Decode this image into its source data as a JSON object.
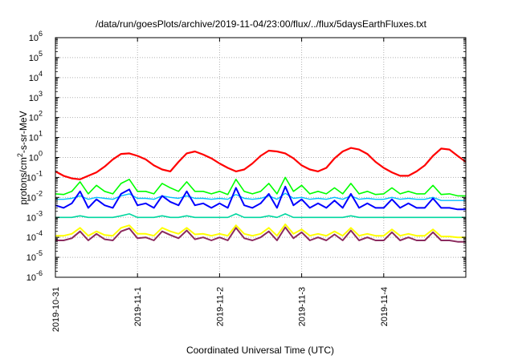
{
  "chart_data": {
    "type": "line",
    "title": "/data/run/goesPlots/archive/2019-11-04/23:00/flux/../flux/5daysEarthFluxes.txt",
    "xlabel": "Coordinated Universal Time (UTC)",
    "ylabel_parts": [
      "protons/cm",
      "2",
      "-s-sr-MeV"
    ],
    "yscale": "log",
    "ylim": [
      1e-06,
      1000000.0
    ],
    "xlim": [
      "2019-10-31",
      "2019-11-05"
    ],
    "grid": true,
    "x_ticks": [
      "2019-10-31",
      "2019-11-1",
      "2019-11-2",
      "2019-11-3",
      "2019-11-4"
    ],
    "y_ticks": [
      {
        "base": "10",
        "exp": "6"
      },
      {
        "base": "10",
        "exp": "5"
      },
      {
        "base": "10",
        "exp": "4"
      },
      {
        "base": "10",
        "exp": "3"
      },
      {
        "base": "10",
        "exp": "2"
      },
      {
        "base": "10",
        "exp": "1"
      },
      {
        "base": "10",
        "exp": "0"
      },
      {
        "base": "10",
        "exp": "-1"
      },
      {
        "base": "10",
        "exp": "-2"
      },
      {
        "base": "10",
        "exp": "-3"
      },
      {
        "base": "10",
        "exp": "-4"
      },
      {
        "base": "10",
        "exp": "-5"
      },
      {
        "base": "10",
        "exp": "-6"
      }
    ],
    "x_days": [
      0.0,
      0.1,
      0.2,
      0.3,
      0.4,
      0.5,
      0.6,
      0.7,
      0.8,
      0.9,
      1.0,
      1.1,
      1.2,
      1.3,
      1.4,
      1.5,
      1.6,
      1.7,
      1.8,
      1.9,
      2.0,
      2.1,
      2.2,
      2.3,
      2.4,
      2.5,
      2.6,
      2.7,
      2.8,
      2.9,
      3.0,
      3.1,
      3.2,
      3.3,
      3.4,
      3.5,
      3.6,
      3.7,
      3.8,
      3.9,
      4.0,
      4.1,
      4.2,
      4.3,
      4.4,
      4.5,
      4.6,
      4.7,
      4.8,
      4.9,
      5.0
    ],
    "series": [
      {
        "color": "#ff0000",
        "width": 2.2,
        "values": [
          0.2,
          0.12,
          0.09,
          0.08,
          0.12,
          0.18,
          0.35,
          0.8,
          1.5,
          1.6,
          1.2,
          0.8,
          0.4,
          0.25,
          0.2,
          0.6,
          1.6,
          2.0,
          1.4,
          0.9,
          0.5,
          0.3,
          0.2,
          0.25,
          0.5,
          1.2,
          2.2,
          2.0,
          1.6,
          0.9,
          0.4,
          0.25,
          0.2,
          0.3,
          0.9,
          2.0,
          3.0,
          2.5,
          1.5,
          0.6,
          0.3,
          0.18,
          0.12,
          0.12,
          0.2,
          0.4,
          1.2,
          2.8,
          2.5,
          1.2,
          0.6
        ]
      },
      {
        "color": "#00ff00",
        "width": 1.6,
        "values": [
          0.015,
          0.014,
          0.02,
          0.06,
          0.015,
          0.04,
          0.02,
          0.015,
          0.05,
          0.08,
          0.02,
          0.02,
          0.015,
          0.05,
          0.03,
          0.02,
          0.06,
          0.02,
          0.02,
          0.015,
          0.02,
          0.014,
          0.08,
          0.02,
          0.015,
          0.02,
          0.05,
          0.015,
          0.1,
          0.02,
          0.04,
          0.015,
          0.02,
          0.015,
          0.03,
          0.015,
          0.05,
          0.015,
          0.02,
          0.014,
          0.015,
          0.03,
          0.015,
          0.02,
          0.015,
          0.015,
          0.04,
          0.014,
          0.015,
          0.012,
          0.012
        ]
      },
      {
        "color": "#00bfff",
        "width": 1.4,
        "values": [
          0.008,
          0.008,
          0.009,
          0.012,
          0.008,
          0.01,
          0.009,
          0.008,
          0.012,
          0.015,
          0.009,
          0.009,
          0.008,
          0.012,
          0.01,
          0.009,
          0.012,
          0.009,
          0.009,
          0.008,
          0.009,
          0.008,
          0.014,
          0.009,
          0.008,
          0.009,
          0.012,
          0.008,
          0.016,
          0.009,
          0.01,
          0.008,
          0.009,
          0.008,
          0.01,
          0.008,
          0.012,
          0.008,
          0.009,
          0.008,
          0.008,
          0.01,
          0.008,
          0.009,
          0.008,
          0.008,
          0.01,
          0.007,
          0.007,
          0.007,
          0.007
        ]
      },
      {
        "color": "#0000ff",
        "width": 2.0,
        "values": [
          0.004,
          0.003,
          0.005,
          0.02,
          0.003,
          0.008,
          0.004,
          0.003,
          0.015,
          0.025,
          0.004,
          0.005,
          0.003,
          0.012,
          0.006,
          0.004,
          0.02,
          0.004,
          0.005,
          0.003,
          0.005,
          0.003,
          0.03,
          0.004,
          0.003,
          0.005,
          0.015,
          0.003,
          0.035,
          0.004,
          0.008,
          0.003,
          0.005,
          0.003,
          0.007,
          0.003,
          0.015,
          0.003,
          0.005,
          0.003,
          0.003,
          0.008,
          0.003,
          0.005,
          0.003,
          0.003,
          0.009,
          0.003,
          0.003,
          0.0025,
          0.0025
        ]
      },
      {
        "color": "#00d7a0",
        "width": 1.6,
        "values": [
          0.001,
          0.001,
          0.001,
          0.0012,
          0.001,
          0.001,
          0.001,
          0.001,
          0.0012,
          0.0015,
          0.001,
          0.001,
          0.001,
          0.0012,
          0.001,
          0.001,
          0.0012,
          0.001,
          0.001,
          0.001,
          0.001,
          0.001,
          0.0015,
          0.001,
          0.001,
          0.001,
          0.0012,
          0.001,
          0.0015,
          0.001,
          0.001,
          0.001,
          0.001,
          0.001,
          0.001,
          0.001,
          0.0012,
          0.001,
          0.001,
          0.001,
          0.001,
          0.001,
          0.001,
          0.001,
          0.001,
          0.001,
          0.001,
          0.001,
          0.001,
          0.001,
          0.001
        ]
      },
      {
        "color": "#ffff00",
        "width": 2.0,
        "values": [
          0.00012,
          0.00012,
          0.00015,
          0.0003,
          0.00012,
          0.0002,
          0.00013,
          0.00012,
          0.0003,
          0.0004,
          0.00015,
          0.00015,
          0.00012,
          0.0003,
          0.0002,
          0.00015,
          0.0003,
          0.00014,
          0.00015,
          0.00012,
          0.00015,
          0.00012,
          0.0004,
          0.00015,
          0.00012,
          0.00015,
          0.0003,
          0.00012,
          0.00045,
          0.00015,
          0.00025,
          0.00012,
          0.00015,
          0.00012,
          0.0002,
          0.00012,
          0.0003,
          0.00012,
          0.00015,
          0.00012,
          0.00012,
          0.00025,
          0.00012,
          0.00015,
          0.00012,
          0.00012,
          0.00025,
          0.00011,
          0.00011,
          0.0001,
          0.0001
        ]
      },
      {
        "color": "#8b2b5e",
        "width": 2.0,
        "values": [
          7e-05,
          7e-05,
          9e-05,
          0.0002,
          7e-05,
          0.00015,
          8e-05,
          7e-05,
          0.0002,
          0.00028,
          9e-05,
          0.0001,
          7e-05,
          0.0002,
          0.00013,
          9e-05,
          0.00022,
          8e-05,
          0.0001,
          7e-05,
          0.0001,
          7e-05,
          0.0003,
          9e-05,
          7e-05,
          0.0001,
          0.0002,
          7e-05,
          0.00032,
          9e-05,
          0.00018,
          7e-05,
          0.0001,
          7e-05,
          0.00014,
          7e-05,
          0.00022,
          7e-05,
          0.0001,
          7e-05,
          7e-05,
          0.00018,
          7e-05,
          0.0001,
          7e-05,
          7e-05,
          0.00018,
          7e-05,
          7e-05,
          6e-05,
          6e-05
        ]
      }
    ]
  }
}
